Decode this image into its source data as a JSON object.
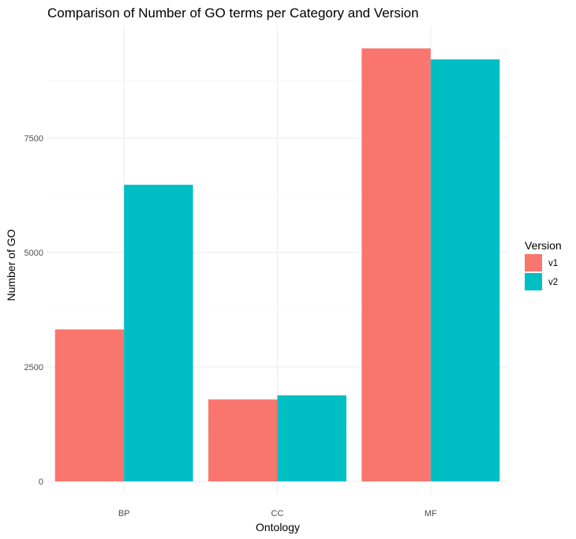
{
  "chart_data": {
    "type": "bar",
    "title": "Comparison of Number of GO terms per Category and Version",
    "xlabel": "Ontology",
    "ylabel": "Number of GO",
    "categories": [
      "BP",
      "CC",
      "MF"
    ],
    "series": [
      {
        "name": "v1",
        "color": "#F8766D",
        "values": [
          3320,
          1790,
          9460
        ]
      },
      {
        "name": "v2",
        "color": "#00BFC4",
        "values": [
          6480,
          1880,
          9220
        ]
      }
    ],
    "ylim": [
      0,
      10000
    ],
    "yticks": [
      0,
      2500,
      5000,
      7500
    ],
    "ytick_labels": [
      "0",
      "2500",
      "5000",
      "7500"
    ],
    "grid": true,
    "legend": {
      "title": "Version",
      "position": "right"
    }
  }
}
